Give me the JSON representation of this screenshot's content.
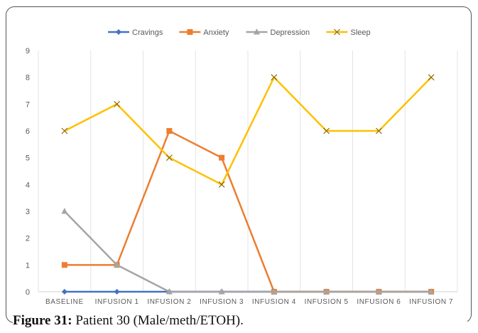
{
  "chart_data": {
    "type": "line",
    "title": "",
    "xlabel": "",
    "ylabel": "",
    "categories": [
      "BASELINE",
      "INFUSION 1",
      "INFUSION 2",
      "INFUSION 3",
      "INFUSION 4",
      "INFUSION 5",
      "INFUSION 6",
      "INFUSION 7"
    ],
    "ylim": [
      0,
      9
    ],
    "yticks": [
      0,
      1,
      2,
      3,
      4,
      5,
      6,
      7,
      8,
      9
    ],
    "grid": "vertical",
    "legend": "top",
    "series": [
      {
        "name": "Cravings",
        "color": "#4472c4",
        "marker": "diamond",
        "values": [
          0,
          0,
          0,
          0,
          0,
          0,
          0,
          0
        ]
      },
      {
        "name": "Anxiety",
        "color": "#ed7d31",
        "marker": "square",
        "values": [
          1,
          1,
          6,
          5,
          0,
          0,
          0,
          0
        ]
      },
      {
        "name": "Depression",
        "color": "#a5a5a5",
        "marker": "triangle",
        "values": [
          3,
          1,
          0,
          0,
          0,
          0,
          0,
          0
        ]
      },
      {
        "name": "Sleep",
        "color": "#ffc000",
        "marker": "x",
        "values": [
          6,
          7,
          5,
          4,
          8,
          6,
          6,
          8
        ]
      }
    ]
  },
  "caption": {
    "label": "Figure 31:",
    "text": " Patient 30 (Male/meth/ETOH)."
  }
}
